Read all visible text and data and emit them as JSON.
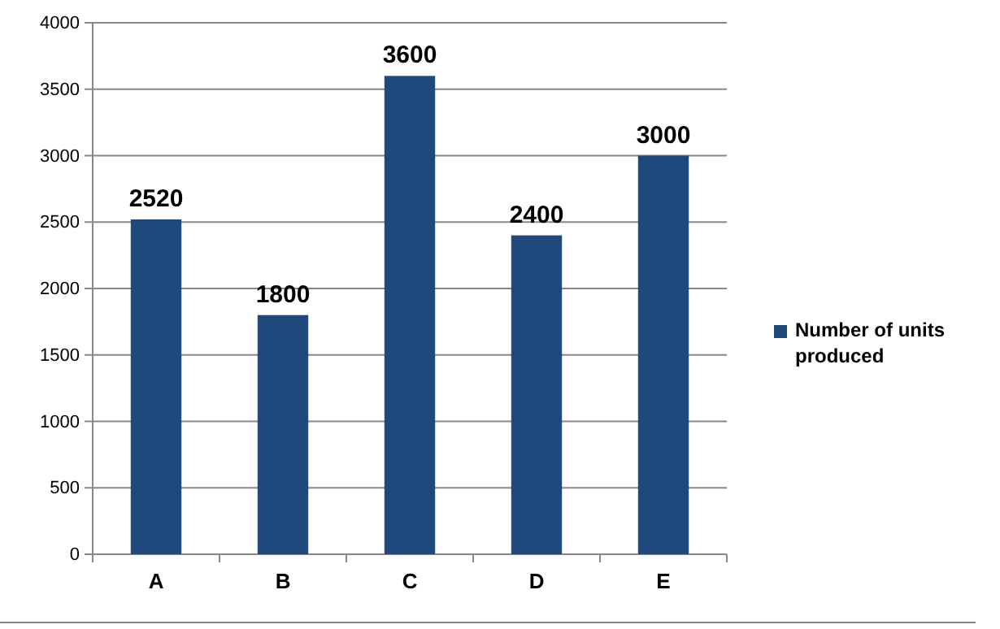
{
  "chart_data": {
    "type": "bar",
    "categories": [
      "A",
      "B",
      "C",
      "D",
      "E"
    ],
    "series": [
      {
        "name": "Number of units produced",
        "color": "#1f497d",
        "values": [
          2520,
          1800,
          3600,
          2400,
          3000
        ]
      }
    ],
    "ylim": [
      0,
      4000
    ],
    "yticks": [
      0,
      500,
      1000,
      1500,
      2000,
      2500,
      3000,
      3500,
      4000
    ],
    "grid": "y",
    "legend": "right",
    "data_labels": true
  }
}
